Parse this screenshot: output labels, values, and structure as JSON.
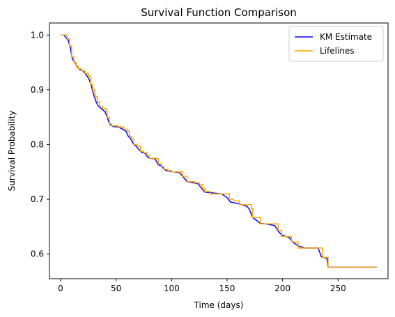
{
  "chart_data": {
    "type": "line",
    "title": "Survival Function Comparison",
    "xlabel": "Time (days)",
    "ylabel": "Survival Probability",
    "xlim": [
      -10,
      295
    ],
    "ylim": [
      0.555,
      1.022
    ],
    "xticks": [
      0,
      50,
      100,
      150,
      200,
      250
    ],
    "yticks": [
      0.6,
      0.7,
      0.8,
      0.9,
      1.0
    ],
    "ytick_labels": [
      "0.6",
      "0.7",
      "0.8",
      "0.9",
      "1.0"
    ],
    "grid": false,
    "legend_position": "top-right",
    "series": [
      {
        "name": "KM Estimate",
        "color": "#0000ff",
        "interpolation": "linear",
        "points": [
          [
            0,
            1.0
          ],
          [
            3,
            1.0
          ],
          [
            5,
            0.995
          ],
          [
            7,
            0.99
          ],
          [
            8,
            0.982
          ],
          [
            9,
            0.975
          ],
          [
            10,
            0.962
          ],
          [
            11,
            0.955
          ],
          [
            13,
            0.95
          ],
          [
            15,
            0.942
          ],
          [
            17,
            0.937
          ],
          [
            20,
            0.935
          ],
          [
            22,
            0.93
          ],
          [
            24,
            0.925
          ],
          [
            26,
            0.918
          ],
          [
            28,
            0.905
          ],
          [
            30,
            0.89
          ],
          [
            32,
            0.878
          ],
          [
            34,
            0.87
          ],
          [
            37,
            0.865
          ],
          [
            40,
            0.86
          ],
          [
            42,
            0.85
          ],
          [
            44,
            0.838
          ],
          [
            47,
            0.833
          ],
          [
            52,
            0.832
          ],
          [
            56,
            0.828
          ],
          [
            59,
            0.824
          ],
          [
            61,
            0.815
          ],
          [
            63,
            0.811
          ],
          [
            66,
            0.8
          ],
          [
            68,
            0.797
          ],
          [
            71,
            0.79
          ],
          [
            73,
            0.786
          ],
          [
            76,
            0.784
          ],
          [
            78,
            0.778
          ],
          [
            80,
            0.775
          ],
          [
            85,
            0.774
          ],
          [
            88,
            0.763
          ],
          [
            91,
            0.761
          ],
          [
            93,
            0.755
          ],
          [
            96,
            0.752
          ],
          [
            101,
            0.75
          ],
          [
            107,
            0.749
          ],
          [
            110,
            0.742
          ],
          [
            114,
            0.732
          ],
          [
            120,
            0.73
          ],
          [
            124,
            0.728
          ],
          [
            127,
            0.72
          ],
          [
            130,
            0.713
          ],
          [
            135,
            0.712
          ],
          [
            145,
            0.71
          ],
          [
            150,
            0.703
          ],
          [
            153,
            0.695
          ],
          [
            160,
            0.692
          ],
          [
            168,
            0.687
          ],
          [
            170,
            0.682
          ],
          [
            173,
            0.667
          ],
          [
            180,
            0.656
          ],
          [
            185,
            0.655
          ],
          [
            193,
            0.652
          ],
          [
            196,
            0.642
          ],
          [
            199,
            0.635
          ],
          [
            206,
            0.63
          ],
          [
            209,
            0.622
          ],
          [
            214,
            0.615
          ],
          [
            220,
            0.611
          ],
          [
            232,
            0.611
          ],
          [
            235,
            0.595
          ],
          [
            240,
            0.592
          ],
          [
            241,
            0.576
          ],
          [
            250,
            0.576
          ],
          [
            285,
            0.576
          ]
        ]
      },
      {
        "name": "Lifelines",
        "color": "#ffa500",
        "interpolation": "step",
        "points": [
          [
            0,
            1.0
          ],
          [
            4,
            1.0
          ],
          [
            6,
            0.993
          ],
          [
            8,
            0.98
          ],
          [
            10,
            0.96
          ],
          [
            12,
            0.95
          ],
          [
            14,
            0.943
          ],
          [
            16,
            0.938
          ],
          [
            19,
            0.935
          ],
          [
            22,
            0.93
          ],
          [
            25,
            0.925
          ],
          [
            27,
            0.91
          ],
          [
            29,
            0.9
          ],
          [
            31,
            0.888
          ],
          [
            33,
            0.878
          ],
          [
            35,
            0.87
          ],
          [
            38,
            0.866
          ],
          [
            41,
            0.86
          ],
          [
            42,
            0.85
          ],
          [
            44,
            0.838
          ],
          [
            46,
            0.834
          ],
          [
            52,
            0.832
          ],
          [
            57,
            0.828
          ],
          [
            60,
            0.825
          ],
          [
            62,
            0.815
          ],
          [
            64,
            0.81
          ],
          [
            66,
            0.8
          ],
          [
            69,
            0.797
          ],
          [
            72,
            0.788
          ],
          [
            75,
            0.785
          ],
          [
            78,
            0.78
          ],
          [
            80,
            0.775
          ],
          [
            86,
            0.774
          ],
          [
            88,
            0.765
          ],
          [
            91,
            0.76
          ],
          [
            93,
            0.755
          ],
          [
            97,
            0.752
          ],
          [
            100,
            0.75
          ],
          [
            108,
            0.75
          ],
          [
            110,
            0.742
          ],
          [
            114,
            0.732
          ],
          [
            121,
            0.73
          ],
          [
            125,
            0.727
          ],
          [
            128,
            0.72
          ],
          [
            130,
            0.714
          ],
          [
            135,
            0.71
          ],
          [
            150,
            0.71
          ],
          [
            152,
            0.7
          ],
          [
            156,
            0.697
          ],
          [
            161,
            0.69
          ],
          [
            170,
            0.69
          ],
          [
            172,
            0.683
          ],
          [
            173,
            0.667
          ],
          [
            180,
            0.655
          ],
          [
            194,
            0.655
          ],
          [
            196,
            0.643
          ],
          [
            199,
            0.632
          ],
          [
            208,
            0.622
          ],
          [
            214,
            0.611
          ],
          [
            225,
            0.611
          ],
          [
            234,
            0.611
          ],
          [
            236,
            0.594
          ],
          [
            241,
            0.576
          ],
          [
            285,
            0.576
          ]
        ]
      }
    ]
  }
}
